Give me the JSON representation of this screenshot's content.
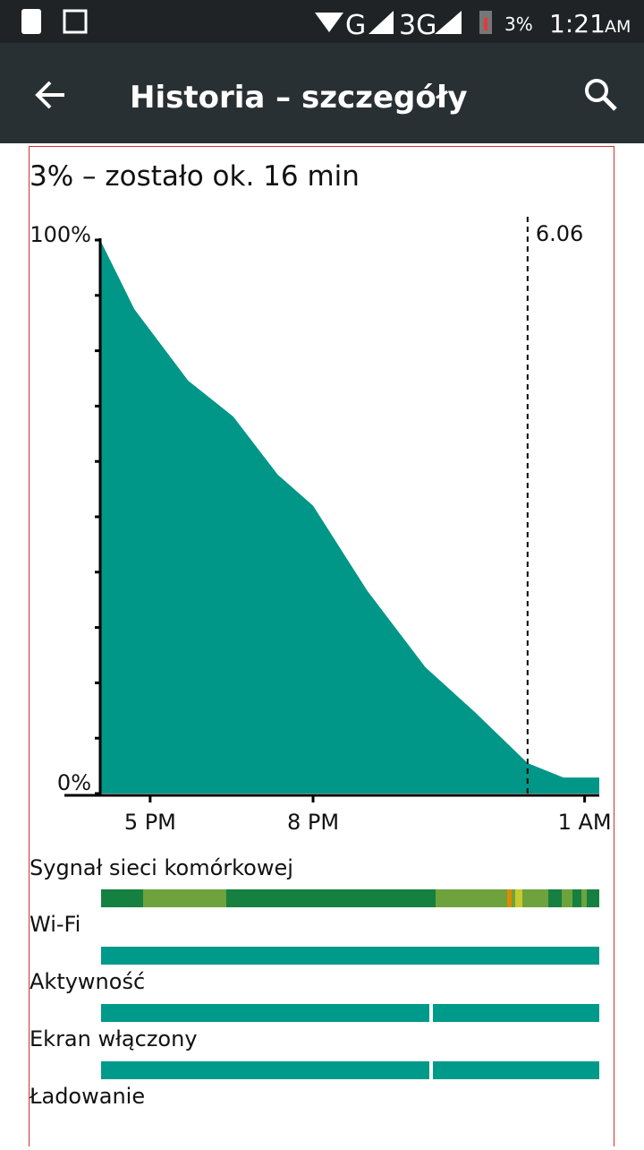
{
  "status_bar": {
    "network_1": "G",
    "network_2": "3G",
    "battery": "3%",
    "time": "1:21",
    "ampm": "AM"
  },
  "app_bar": {
    "title": "Historia – szczegóły"
  },
  "summary": "3% – zostało ok. 16 min",
  "chart_data": {
    "type": "area",
    "color": "#009688",
    "x": [
      16.08,
      16.71,
      17.7,
      18.53,
      19.35,
      20,
      21,
      22.07,
      22.98,
      23.95,
      24.61,
      25.27
    ],
    "values": [
      100,
      87.5,
      74.6,
      68.1,
      57.6,
      52,
      36.6,
      22.8,
      14.7,
      5.5,
      2.9,
      2.9
    ],
    "xlim": [
      16.08,
      25.27
    ],
    "ylim": [
      0,
      100
    ],
    "xticks": [
      {
        "value": 17,
        "label": "5 PM"
      },
      {
        "value": 20,
        "label": "8 PM"
      },
      {
        "value": 25,
        "label": "1 AM"
      }
    ],
    "yticks": [
      {
        "value": 0,
        "label": "0%"
      },
      {
        "value": 100,
        "label": "100%"
      }
    ],
    "annotation": {
      "x": 23.95,
      "label": "6.06"
    }
  },
  "tracks": [
    "Sygnał sieci komórkowej",
    "Wi-Fi",
    "Aktywność",
    "Ekran włączony",
    "Ładowanie"
  ]
}
